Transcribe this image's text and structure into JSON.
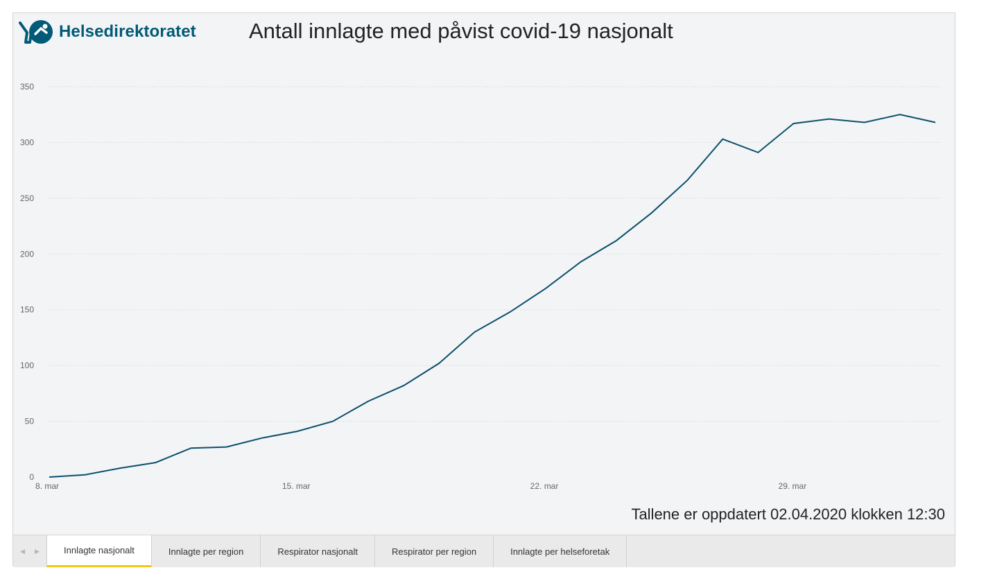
{
  "brand": {
    "name": "Helsedirektoratet",
    "color": "#015a77"
  },
  "title": "Antall innlagte med påvist covid-19 nasjonalt",
  "footnote": "Tallene er oppdatert 02.04.2020 klokken 12:30",
  "tabs": [
    {
      "label": "Innlagte nasjonalt",
      "active": true
    },
    {
      "label": "Innlagte per region",
      "active": false
    },
    {
      "label": "Respirator nasjonalt",
      "active": false
    },
    {
      "label": "Respirator per region",
      "active": false
    },
    {
      "label": "Innlagte per helseforetak",
      "active": false
    }
  ],
  "nav": {
    "prev_icon": "chevron-left-icon",
    "next_icon": "chevron-right-icon"
  },
  "chart_data": {
    "type": "line",
    "title": "Antall innlagte med påvist covid-19 nasjonalt",
    "xlabel": "",
    "ylabel": "",
    "line_color": "#0b4f6c",
    "grid": true,
    "ylim": [
      0,
      350
    ],
    "yticks": [
      0,
      50,
      100,
      150,
      200,
      250,
      300,
      350
    ],
    "xticks": [
      {
        "day": 0,
        "label": "8. mar"
      },
      {
        "day": 7,
        "label": "15. mar"
      },
      {
        "day": 14,
        "label": "22. mar"
      },
      {
        "day": 21,
        "label": "29. mar"
      }
    ],
    "x": [
      "8. mar",
      "9. mar",
      "10. mar",
      "11. mar",
      "12. mar",
      "13. mar",
      "14. mar",
      "15. mar",
      "16. mar",
      "17. mar",
      "18. mar",
      "19. mar",
      "20. mar",
      "21. mar",
      "22. mar",
      "23. mar",
      "24. mar",
      "25. mar",
      "26. mar",
      "27. mar",
      "28. mar",
      "29. mar",
      "30. mar",
      "31. mar",
      "1. apr",
      "2. apr"
    ],
    "values": [
      0,
      2,
      8,
      13,
      26,
      27,
      35,
      41,
      50,
      68,
      82,
      102,
      130,
      148,
      169,
      193,
      212,
      237,
      266,
      303,
      291,
      317,
      321,
      318,
      325,
      318
    ]
  }
}
